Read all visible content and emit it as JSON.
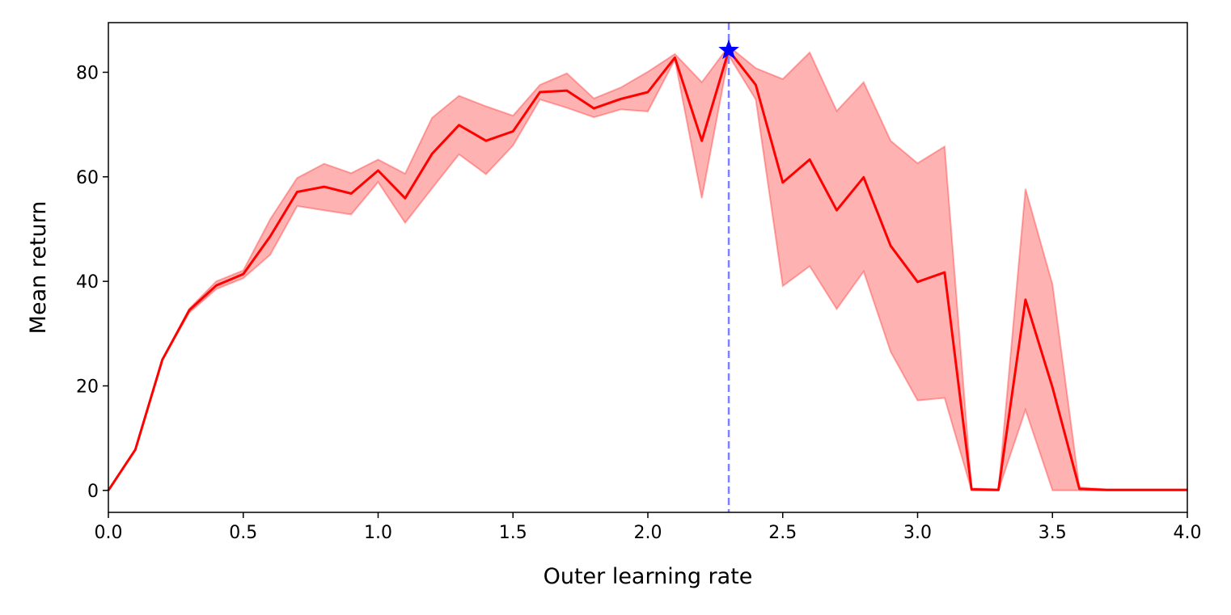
{
  "chart_data": {
    "type": "line",
    "title": "",
    "xlabel": "Outer learning rate",
    "ylabel": "Mean return",
    "xlim": [
      0,
      4
    ],
    "ylim": [
      -4.2,
      89.5
    ],
    "xticks": [
      0.0,
      0.5,
      1.0,
      1.5,
      2.0,
      2.5,
      3.0,
      3.5,
      4.0
    ],
    "xtick_labels": [
      "0.0",
      "0.5",
      "1.0",
      "1.5",
      "2.0",
      "2.5",
      "3.0",
      "3.5",
      "4.0"
    ],
    "yticks": [
      0,
      20,
      40,
      60,
      80
    ],
    "ytick_labels": [
      "0",
      "20",
      "40",
      "60",
      "80"
    ],
    "grid": false,
    "series": [
      {
        "name": "mean",
        "color": "#ff0000",
        "band_color": "#ff0000",
        "x": [
          0.0,
          0.1,
          0.2,
          0.3,
          0.4,
          0.5,
          0.6,
          0.7,
          0.8,
          0.9,
          1.0,
          1.1,
          1.2,
          1.3,
          1.4,
          1.5,
          1.6,
          1.7,
          1.8,
          1.9,
          2.0,
          2.1,
          2.2,
          2.3,
          2.4,
          2.5,
          2.6,
          2.7,
          2.8,
          2.9,
          3.0,
          3.1,
          3.2,
          3.3,
          3.4,
          3.5,
          3.6,
          3.7,
          3.8,
          3.9,
          4.0
        ],
        "y": [
          0.0,
          7.8,
          25.0,
          34.5,
          39.2,
          41.4,
          48.6,
          57.1,
          58.1,
          56.8,
          61.2,
          55.9,
          64.4,
          69.9,
          66.9,
          68.7,
          76.2,
          76.5,
          73.1,
          74.9,
          76.2,
          82.8,
          66.9,
          84.2,
          77.6,
          58.9,
          63.3,
          53.6,
          59.9,
          46.8,
          39.9,
          41.7,
          0.2,
          0.1,
          36.5,
          19.7,
          0.3,
          0.1,
          0.1,
          0.1,
          0.1
        ],
        "lower": [
          0.0,
          7.8,
          25.0,
          34.0,
          38.5,
          40.6,
          45.1,
          54.4,
          53.6,
          52.8,
          59.0,
          51.2,
          57.8,
          64.3,
          60.5,
          66.0,
          74.8,
          73.2,
          71.4,
          72.9,
          72.5,
          82.4,
          55.9,
          83.2,
          74.8,
          39.1,
          42.9,
          34.7,
          41.9,
          26.5,
          17.2,
          17.7,
          0.0,
          0.0,
          15.4,
          0.0,
          0.0,
          0.0,
          0.0,
          0.0,
          0.0
        ],
        "upper": [
          0.0,
          7.8,
          25.0,
          34.8,
          40.0,
          42.1,
          51.9,
          59.8,
          62.5,
          60.7,
          63.3,
          60.6,
          71.3,
          75.5,
          73.5,
          71.7,
          77.6,
          79.8,
          75.0,
          77.1,
          80.1,
          83.5,
          78.1,
          85.0,
          80.8,
          78.7,
          83.8,
          72.6,
          78.1,
          66.9,
          62.6,
          65.8,
          0.4,
          0.2,
          57.7,
          39.4,
          0.6,
          0.2,
          0.2,
          0.2,
          0.2
        ]
      }
    ],
    "annotations": [
      {
        "type": "vline",
        "x": 2.3,
        "color": "#8080ff",
        "style": "dashed"
      },
      {
        "type": "marker",
        "marker": "star",
        "x": 2.3,
        "y": 84.2,
        "color": "#0000ff"
      }
    ]
  }
}
